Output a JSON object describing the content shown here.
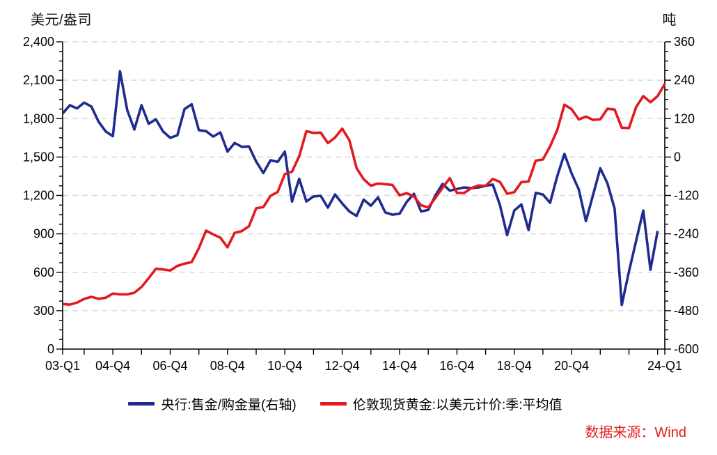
{
  "axes_units": {
    "left": "美元/盎司",
    "right": "吨"
  },
  "source_note": "数据来源：Wind",
  "legend": {
    "items": [
      {
        "label": "央行:售金/购金量(右轴)",
        "color": "#1F2B8F"
      },
      {
        "label": "伦敦现货黄金:以美元计价:季:平均值",
        "color": "#E2191F"
      }
    ]
  },
  "chart_data": {
    "type": "line",
    "title": "",
    "x_axis": {
      "unit": "quarter",
      "first_quarter": "03-Q1",
      "last_quarter": "24-Q1",
      "total_quarters": 85,
      "tick_quarter_indices": [
        0,
        3,
        7,
        11,
        15,
        19,
        23,
        27,
        31,
        35,
        39,
        43,
        47,
        51,
        55,
        59,
        63,
        67,
        71,
        75,
        79,
        83,
        84
      ],
      "label_quarter_indices": [
        0,
        7,
        15,
        23,
        31,
        39,
        47,
        55,
        63,
        71,
        84
      ],
      "labels": [
        "03-Q1",
        "04-Q4",
        "06-Q4",
        "08-Q4",
        "10-Q4",
        "12-Q4",
        "14-Q4",
        "16-Q4",
        "18-Q4",
        "20-Q4",
        "24-Q1"
      ]
    },
    "left_axis": {
      "label": "美元/盎司",
      "min": 0,
      "max": 2400,
      "major_step": 300,
      "minor_step": 75,
      "tick_labels": [
        "0",
        "300",
        "600",
        "900",
        "1,200",
        "1,500",
        "1,800",
        "2,100",
        "2,400"
      ]
    },
    "right_axis": {
      "label": "吨",
      "min": -600,
      "max": 360,
      "major_step": 120,
      "minor_step": 30,
      "tick_labels": [
        "-600",
        "-480",
        "-360",
        "-240",
        "-120",
        "0",
        "120",
        "240",
        "360"
      ]
    },
    "grid": {
      "show": true,
      "style": "dashed",
      "color": "#D9D9D9",
      "at_left_values": [
        300,
        600,
        900,
        1200,
        1500,
        1800,
        2100,
        2400
      ]
    },
    "legend_position": "bottom",
    "series": [
      {
        "name": "央行:售金/购金量(右轴)",
        "axis": "right",
        "color": "#1F2B8F",
        "start_quarter": "03-Q1",
        "end_quarter": "23-Q4",
        "values": [
          136,
          162,
          152,
          170,
          158,
          111,
          80,
          65,
          268,
          147,
          86,
          162,
          104,
          118,
          80,
          60,
          68,
          150,
          165,
          84,
          81,
          64,
          77,
          17,
          44,
          32,
          33,
          -14,
          -50,
          -10,
          -15,
          17,
          -139,
          -68,
          -139,
          -123,
          -121,
          -158,
          -117,
          -145,
          -170,
          -184,
          -133,
          -152,
          -126,
          -173,
          -180,
          -177,
          -140,
          -115,
          -170,
          -165,
          -120,
          -84,
          -105,
          -100,
          -95,
          -97,
          -95,
          -90,
          -86,
          -150,
          -244,
          -167,
          -148,
          -228,
          -112,
          -117,
          -143,
          -60,
          10,
          -51,
          -101,
          -200,
          -118,
          -35,
          -82,
          -161,
          -462,
          -358,
          -262,
          -167,
          -352,
          -231
        ]
      },
      {
        "name": "伦敦现货黄金:以美元计价:季:平均值",
        "axis": "left",
        "color": "#E2191F",
        "start_quarter": "03-Q1",
        "end_quarter": "24-Q1",
        "values": [
          352,
          347,
          363,
          392,
          408,
          393,
          401,
          434,
          427,
          427,
          440,
          485,
          554,
          627,
          622,
          614,
          650,
          667,
          680,
          788,
          925,
          896,
          870,
          795,
          908,
          922,
          960,
          1100,
          1109,
          1196,
          1227,
          1367,
          1386,
          1506,
          1702,
          1688,
          1691,
          1609,
          1652,
          1722,
          1631,
          1414,
          1326,
          1276,
          1293,
          1288,
          1282,
          1201,
          1218,
          1192,
          1124,
          1106,
          1181,
          1260,
          1335,
          1220,
          1219,
          1257,
          1278,
          1275,
          1329,
          1306,
          1213,
          1226,
          1304,
          1309,
          1472,
          1481,
          1583,
          1711,
          1909,
          1874,
          1794,
          1816,
          1790,
          1795,
          1877,
          1871,
          1729,
          1726,
          1890,
          1976,
          1928,
          1976,
          2070
        ]
      }
    ]
  }
}
